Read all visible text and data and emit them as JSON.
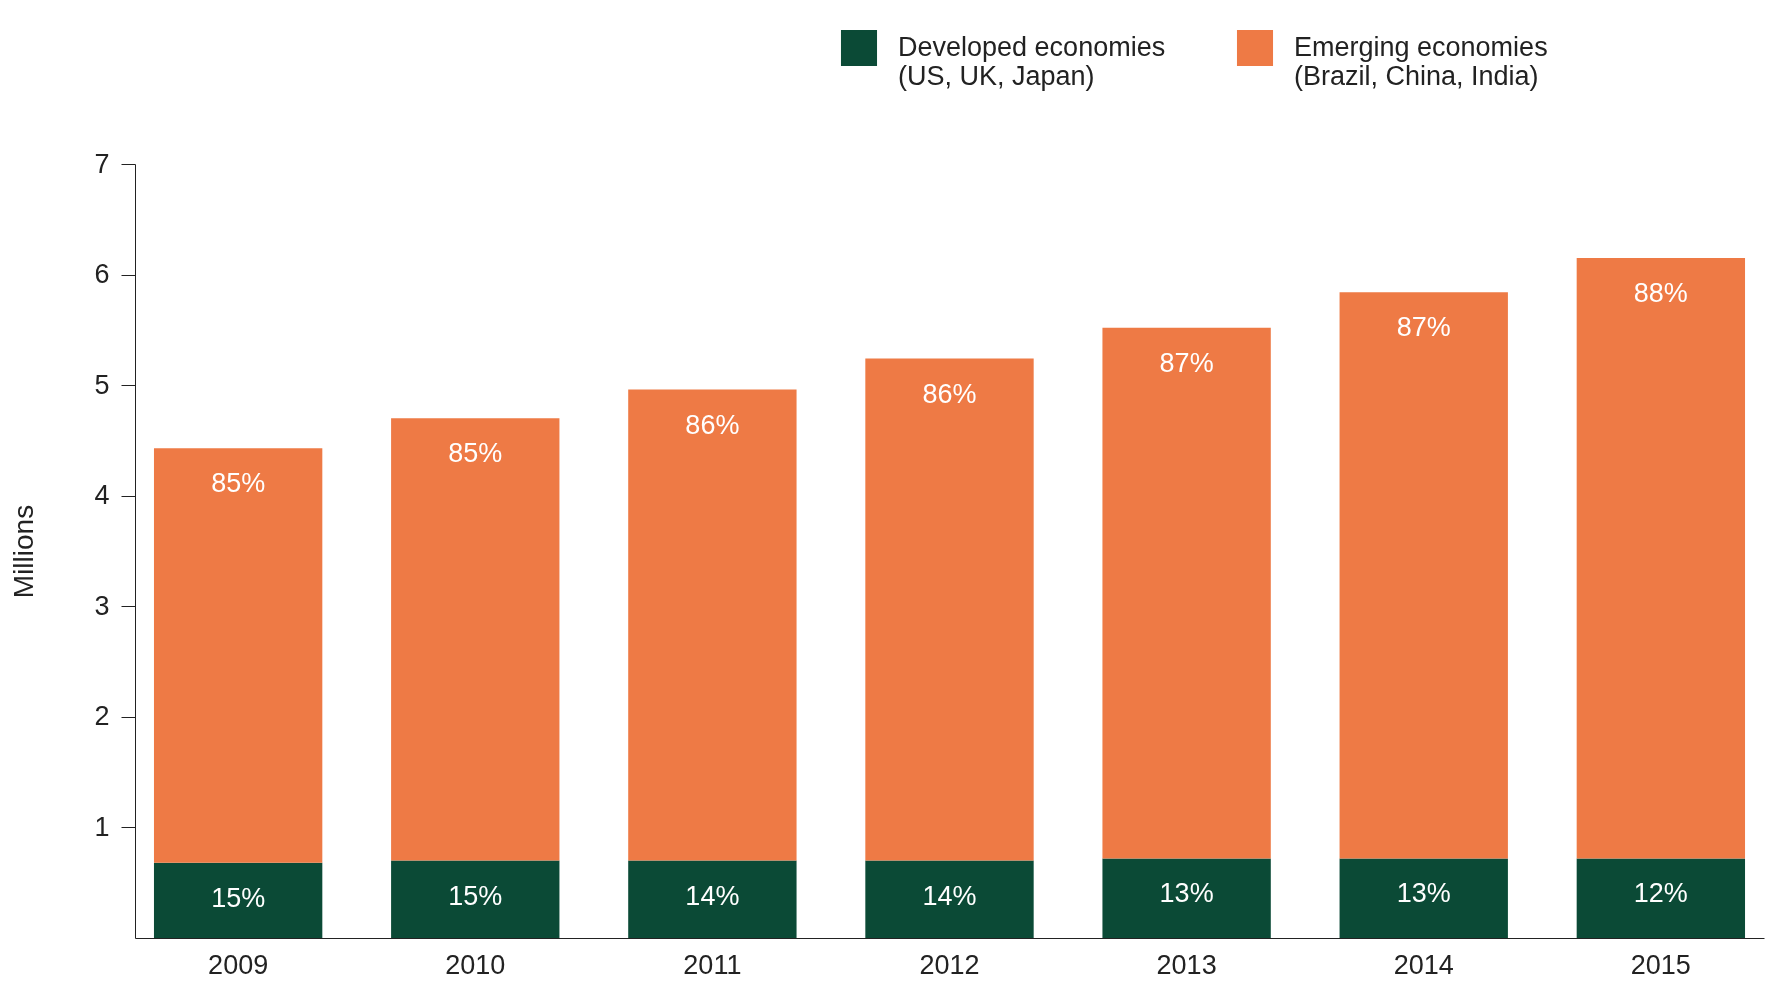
{
  "chart_data": {
    "type": "bar",
    "stacked": true,
    "ylabel": "Millions",
    "categories": [
      "2009",
      "2010",
      "2011",
      "2012",
      "2013",
      "2014",
      "2015"
    ],
    "ylim": [
      0,
      7
    ],
    "yticks": [
      1,
      2,
      3,
      4,
      5,
      6,
      7
    ],
    "grid": false,
    "legend": "top right",
    "series": [
      {
        "name": "Developed economies (US, UK, Japan)",
        "color": "#0b4a36",
        "values": [
          0.68,
          0.7,
          0.7,
          0.7,
          0.72,
          0.72,
          0.72
        ]
      },
      {
        "name": "Emerging economies (Brazil, China, India)",
        "color": "#ee7a45",
        "values": [
          3.75,
          4.0,
          4.26,
          4.54,
          4.8,
          5.12,
          5.43
        ]
      }
    ],
    "annotations": [
      {
        "text": "15%",
        "x": "2009",
        "y": 0.68
      },
      {
        "text": "15%",
        "x": "2010",
        "y": 0.7
      },
      {
        "text": "14%",
        "x": "2011",
        "y": 0.7
      },
      {
        "text": "14%",
        "x": "2012",
        "y": 0.7
      },
      {
        "text": "13%",
        "x": "2013",
        "y": 0.72
      },
      {
        "text": "13%",
        "x": "2014",
        "y": 0.72
      },
      {
        "text": "12%",
        "x": "2015",
        "y": 0.72
      },
      {
        "text": "85%",
        "x": "2009",
        "y": 4.43
      },
      {
        "text": "85%",
        "x": "2010",
        "y": 4.7
      },
      {
        "text": "86%",
        "x": "2011",
        "y": 4.96
      },
      {
        "text": "86%",
        "x": "2012",
        "y": 5.24
      },
      {
        "text": "87%",
        "x": "2013",
        "y": 5.52
      },
      {
        "text": "87%",
        "x": "2014",
        "y": 5.84
      },
      {
        "text": "88%",
        "x": "2015",
        "y": 6.15
      }
    ]
  }
}
